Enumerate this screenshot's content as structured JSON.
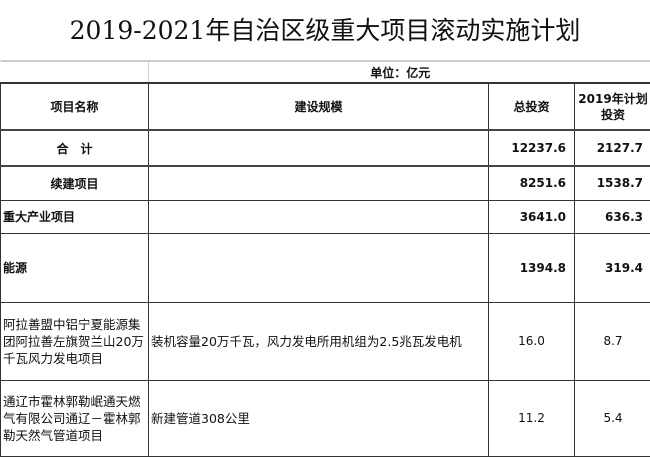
{
  "title": "2019-2021年自治区级重大项目滚动实施计划",
  "unit": "单位：亿元",
  "columns": [
    "项目名称",
    "建设规模",
    "总投资",
    "2019年计划投资"
  ],
  "rows": [
    {
      "name": "合　计",
      "scale": "",
      "total": "12237.6",
      "plan2019": "2127.7"
    },
    {
      "name": "续建项目",
      "scale": "",
      "total": "8251.6",
      "plan2019": "1538.7"
    },
    {
      "name": "重大产业项目",
      "scale": "",
      "total": "3641.0",
      "plan2019": "636.3"
    },
    {
      "name": "能源",
      "scale": "",
      "total": "1394.8",
      "plan2019": "319.4"
    },
    {
      "name": "阿拉善盟中铝宁夏能源集团阿拉善左旗贺兰山20万千瓦风力发电项目",
      "scale": "装机容量20万千瓦，风力发电所用机组为2.5兆瓦发电机",
      "total": "16.0",
      "plan2019": "8.7"
    },
    {
      "name": "通辽市霍林郭勒岷通天燃气有限公司通辽－霍林郭勒天然气管道项目",
      "scale": "新建管道308公里",
      "total": "11.2",
      "plan2019": "5.4"
    }
  ]
}
